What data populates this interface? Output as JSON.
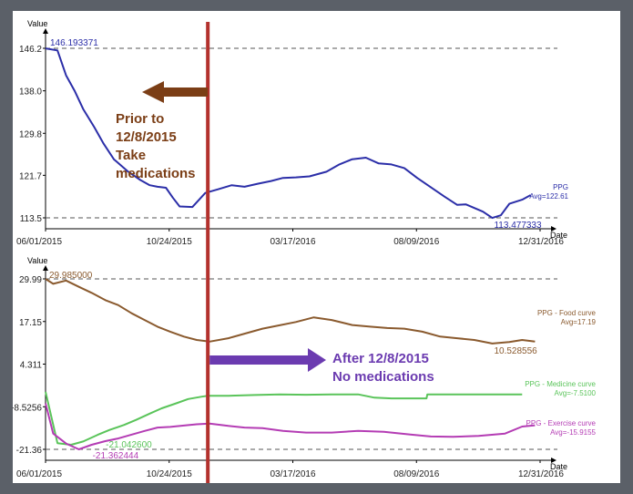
{
  "chart_data": [
    {
      "type": "line",
      "ylabel": "Value",
      "xlabel": "Date",
      "yticks": [
        "146.2",
        "138.0",
        "129.8",
        "121.7",
        "113.5"
      ],
      "ytick_values": [
        146.2,
        138.0,
        129.8,
        121.7,
        113.5
      ],
      "xticks": [
        "06/01/2015",
        "10/24/2015",
        "03/17/2016",
        "08/09/2016",
        "12/31/2016"
      ],
      "x_range": [
        "2015-06-01",
        "2016-12-31"
      ],
      "ylim": [
        113.5,
        146.2
      ],
      "grid": "dashed horizontal lines at max and min",
      "series": [
        {
          "name": "PPG",
          "avg_label": "Avg=122.61",
          "color": "#2b2ea8",
          "x": [
            "2015-06-01",
            "2015-06-15",
            "2015-06-25",
            "2015-07-05",
            "2015-07-15",
            "2015-07-28",
            "2015-08-08",
            "2015-08-20",
            "2015-09-05",
            "2015-09-20",
            "2015-10-01",
            "2015-10-10",
            "2015-10-20",
            "2015-10-28",
            "2015-11-05",
            "2015-11-20",
            "2015-12-05",
            "2015-12-20",
            "2016-01-05",
            "2016-01-20",
            "2016-02-05",
            "2016-02-20",
            "2016-03-05",
            "2016-03-20",
            "2016-04-05",
            "2016-04-25",
            "2016-05-10",
            "2016-05-25",
            "2016-06-10",
            "2016-06-25",
            "2016-07-10",
            "2016-07-25",
            "2016-08-09",
            "2016-08-25",
            "2016-09-10",
            "2016-09-25",
            "2016-10-05",
            "2016-10-15",
            "2016-10-25",
            "2016-11-05",
            "2016-11-15",
            "2016-11-25",
            "2016-12-10",
            "2016-12-20"
          ],
          "y": [
            146.19,
            145.8,
            141.0,
            138.0,
            134.5,
            131.0,
            127.8,
            124.8,
            122.5,
            120.8,
            119.8,
            119.5,
            119.3,
            117.4,
            115.7,
            115.6,
            118.3,
            119.0,
            119.8,
            119.5,
            120.1,
            120.6,
            121.2,
            121.3,
            121.5,
            122.4,
            123.8,
            124.8,
            125.1,
            124.0,
            123.8,
            123.1,
            121.2,
            119.4,
            117.6,
            116.0,
            116.1,
            115.4,
            114.7,
            113.48,
            114.0,
            116.2,
            117.0,
            117.9
          ],
          "annotations": [
            {
              "label": "146.193371",
              "x": "2015-06-01",
              "y": 146.19
            },
            {
              "label": "113.477333",
              "x": "2016-11-05",
              "y": 113.48
            }
          ]
        }
      ]
    },
    {
      "type": "line",
      "ylabel": "Value",
      "xlabel": "Date",
      "yticks": [
        "29.99",
        "17.15",
        "4.311",
        "-8.5256",
        "-21.36"
      ],
      "ytick_values": [
        29.99,
        17.15,
        4.311,
        -8.5256,
        -21.36
      ],
      "xticks": [
        "06/01/2015",
        "10/24/2015",
        "03/17/2016",
        "08/09/2016",
        "12/31/2016"
      ],
      "x_range": [
        "2015-06-01",
        "2016-12-31"
      ],
      "ylim": [
        -21.36,
        29.99
      ],
      "grid": "dashed horizontal lines at max and min",
      "series": [
        {
          "name": "PPG - Food curve",
          "avg_label": "Avg=17.19",
          "color": "#8a5a2e",
          "x": [
            "2015-06-01",
            "2015-06-10",
            "2015-06-25",
            "2015-07-10",
            "2015-07-25",
            "2015-08-10",
            "2015-08-25",
            "2015-09-10",
            "2015-09-25",
            "2015-10-10",
            "2015-10-25",
            "2015-11-10",
            "2015-11-25",
            "2015-12-10",
            "2016-01-01",
            "2016-01-20",
            "2016-02-10",
            "2016-03-01",
            "2016-03-20",
            "2016-04-10",
            "2016-05-01",
            "2016-05-25",
            "2016-06-15",
            "2016-07-05",
            "2016-07-25",
            "2016-08-15",
            "2016-09-05",
            "2016-09-25",
            "2016-10-15",
            "2016-11-05",
            "2016-11-25",
            "2016-12-10",
            "2016-12-25"
          ],
          "y": [
            29.99,
            28.5,
            29.5,
            27.6,
            25.8,
            23.6,
            22.1,
            19.6,
            17.6,
            15.6,
            14.1,
            12.6,
            11.6,
            11.1,
            12.1,
            13.5,
            15.0,
            16.0,
            17.0,
            18.4,
            17.6,
            16.1,
            15.6,
            15.2,
            15.0,
            14.1,
            12.6,
            12.1,
            11.6,
            10.53,
            11.0,
            11.6,
            11.1
          ],
          "annotations": [
            {
              "label": "29.985000",
              "x": "2015-06-01",
              "y": 29.99
            },
            {
              "label": "10.528556",
              "x": "2016-11-05",
              "y": 10.53
            }
          ]
        },
        {
          "name": "PPG - Medicine curve",
          "avg_label": "Avg=-7.5100",
          "color": "#5ac45a",
          "x": [
            "2015-06-01",
            "2015-06-15",
            "2015-07-01",
            "2015-07-15",
            "2015-08-01",
            "2015-08-15",
            "2015-09-01",
            "2015-09-15",
            "2015-10-01",
            "2015-10-15",
            "2015-11-01",
            "2015-11-15",
            "2015-12-01",
            "2015-12-08",
            "2016-01-01",
            "2016-02-01",
            "2016-03-01",
            "2016-04-01",
            "2016-05-01",
            "2016-06-01",
            "2016-06-20",
            "2016-07-10",
            "2016-08-01",
            "2016-08-20",
            "2016-08-21",
            "2016-09-20",
            "2016-10-20",
            "2016-11-20",
            "2016-12-10"
          ],
          "y": [
            -4.0,
            -19.5,
            -20.0,
            -19.0,
            -17.0,
            -15.5,
            -14.0,
            -12.5,
            -10.6,
            -9.0,
            -7.5,
            -6.2,
            -5.5,
            -5.2,
            -5.2,
            -5.0,
            -4.8,
            -4.9,
            -4.8,
            -4.8,
            -5.8,
            -6.0,
            -6.0,
            -6.0,
            -4.8,
            -4.8,
            -4.8,
            -4.8,
            -4.8
          ],
          "annotations": [
            {
              "label": "-21.042600",
              "x": "2015-07-01",
              "y": -21.04
            }
          ]
        },
        {
          "name": "PPG - Exercise curve",
          "avg_label": "Avg=-15.9155",
          "color": "#b43cb4",
          "x": [
            "2015-06-01",
            "2015-06-10",
            "2015-06-25",
            "2015-07-10",
            "2015-07-25",
            "2015-08-10",
            "2015-08-25",
            "2015-09-10",
            "2015-09-25",
            "2015-10-10",
            "2015-10-25",
            "2015-11-10",
            "2015-11-25",
            "2015-12-10",
            "2016-01-01",
            "2016-01-20",
            "2016-02-10",
            "2016-03-05",
            "2016-04-01",
            "2016-05-01",
            "2016-06-01",
            "2016-07-01",
            "2016-08-01",
            "2016-08-25",
            "2016-09-20",
            "2016-10-20",
            "2016-11-20",
            "2016-12-10",
            "2016-12-25"
          ],
          "y": [
            -7.5,
            -16.6,
            -19.6,
            -21.36,
            -20.0,
            -18.9,
            -18.1,
            -16.9,
            -15.8,
            -14.8,
            -14.6,
            -14.2,
            -13.8,
            -13.6,
            -14.3,
            -14.8,
            -15.0,
            -15.8,
            -16.3,
            -16.3,
            -15.8,
            -16.1,
            -16.9,
            -17.5,
            -17.6,
            -17.3,
            -16.6,
            -14.5,
            -14.1
          ],
          "annotations": [
            {
              "label": "-21.362444",
              "x": "2015-07-10",
              "y": -21.36
            }
          ]
        }
      ]
    }
  ],
  "overlay": {
    "marker_date": "2015-12-08",
    "marker_color": "#b3312d",
    "before_text": [
      "Prior to",
      "12/8/2015",
      "Take",
      "medications"
    ],
    "before_color": "#7b3e16",
    "after_text": [
      "After 12/8/2015",
      "No medications"
    ],
    "after_color": "#6b3bb0"
  }
}
